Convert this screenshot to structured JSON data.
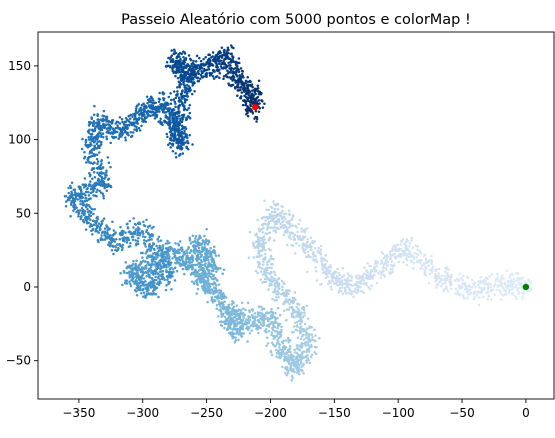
{
  "chart_data": {
    "type": "scatter",
    "title": "Passeio Aleatório com 5000 pontos e colorMap !",
    "xlabel": "",
    "ylabel": "",
    "xlim": [
      -382,
      22
    ],
    "ylim": [
      -76,
      173
    ],
    "xticks": [
      -350,
      -300,
      -250,
      -200,
      -150,
      -100,
      -50,
      0
    ],
    "xtick_labels": [
      "−350",
      "−300",
      "−250",
      "−200",
      "−150",
      "−100",
      "−50",
      "0"
    ],
    "yticks": [
      -50,
      0,
      50,
      100,
      150
    ],
    "ytick_labels": [
      "−50",
      "0",
      "50",
      "100",
      "150"
    ],
    "grid": false,
    "colormap": "Blues",
    "num_points": 5000,
    "walk_path": [
      [
        0,
        0
      ],
      [
        -15,
        2
      ],
      [
        -40,
        -3
      ],
      [
        -70,
        6
      ],
      [
        -95,
        28
      ],
      [
        -115,
        12
      ],
      [
        -135,
        -2
      ],
      [
        -155,
        10
      ],
      [
        -175,
        32
      ],
      [
        -195,
        52
      ],
      [
        -210,
        30
      ],
      [
        -200,
        5
      ],
      [
        -180,
        -15
      ],
      [
        -170,
        -38
      ],
      [
        -180,
        -55
      ],
      [
        -190,
        -45
      ],
      [
        -200,
        -20
      ],
      [
        -215,
        -25
      ],
      [
        -235,
        -15
      ],
      [
        -225,
        -32
      ],
      [
        -240,
        -5
      ],
      [
        -255,
        5
      ],
      [
        -245,
        15
      ],
      [
        -255,
        30
      ],
      [
        -265,
        15
      ],
      [
        -280,
        25
      ],
      [
        -295,
        15
      ],
      [
        -310,
        8
      ],
      [
        -295,
        -2
      ],
      [
        -280,
        10
      ],
      [
        -300,
        40
      ],
      [
        -320,
        30
      ],
      [
        -340,
        45
      ],
      [
        -355,
        62
      ],
      [
        -330,
        70
      ],
      [
        -340,
        95
      ],
      [
        -335,
        112
      ],
      [
        -315,
        105
      ],
      [
        -300,
        118
      ],
      [
        -285,
        125
      ],
      [
        -275,
        108
      ],
      [
        -270,
        95
      ],
      [
        -272,
        120
      ],
      [
        -265,
        140
      ],
      [
        -275,
        155
      ],
      [
        -260,
        145
      ],
      [
        -245,
        150
      ],
      [
        -235,
        158
      ],
      [
        -225,
        140
      ],
      [
        -215,
        130
      ],
      [
        -212,
        120
      ]
    ],
    "start_point": {
      "x": 0,
      "y": 0,
      "color": "green"
    },
    "end_point": {
      "x": -212,
      "y": 122,
      "color": "red"
    }
  }
}
